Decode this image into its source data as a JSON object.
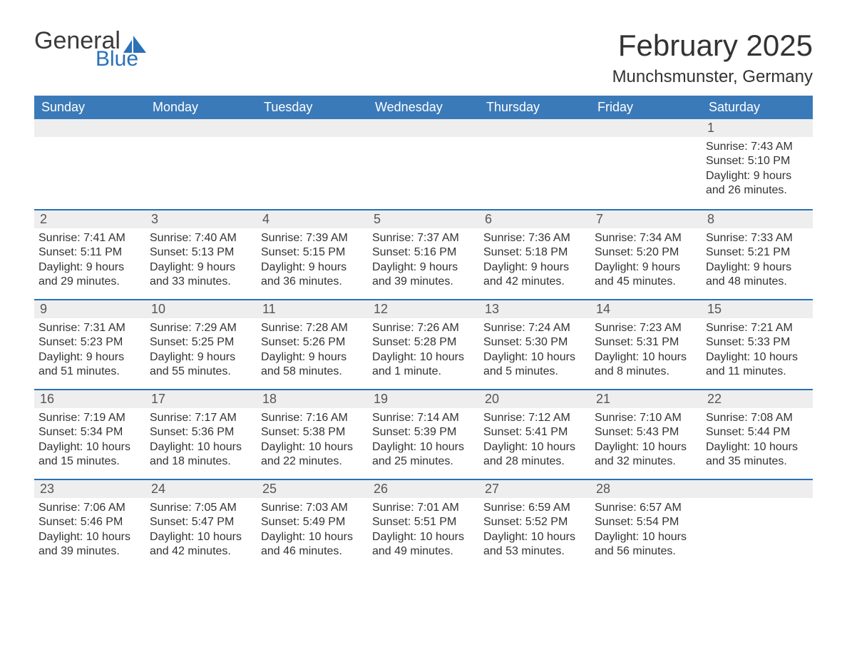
{
  "logo": {
    "text_general": "General",
    "text_blue": "Blue",
    "sail_color": "#2a71b8",
    "general_color": "#3a3a3a"
  },
  "header": {
    "month_title": "February 2025",
    "location": "Munchsmunster, Germany"
  },
  "colors": {
    "header_bg": "#3b7ab8",
    "header_text": "#ffffff",
    "daynum_bg": "#eeeeee",
    "row_divider": "#2a71b8",
    "body_text": "#333333",
    "page_bg": "#ffffff"
  },
  "day_headers": [
    "Sunday",
    "Monday",
    "Tuesday",
    "Wednesday",
    "Thursday",
    "Friday",
    "Saturday"
  ],
  "weeks": [
    [
      null,
      null,
      null,
      null,
      null,
      null,
      {
        "n": "1",
        "sunrise": "Sunrise: 7:43 AM",
        "sunset": "Sunset: 5:10 PM",
        "daylight": "Daylight: 9 hours and 26 minutes."
      }
    ],
    [
      {
        "n": "2",
        "sunrise": "Sunrise: 7:41 AM",
        "sunset": "Sunset: 5:11 PM",
        "daylight": "Daylight: 9 hours and 29 minutes."
      },
      {
        "n": "3",
        "sunrise": "Sunrise: 7:40 AM",
        "sunset": "Sunset: 5:13 PM",
        "daylight": "Daylight: 9 hours and 33 minutes."
      },
      {
        "n": "4",
        "sunrise": "Sunrise: 7:39 AM",
        "sunset": "Sunset: 5:15 PM",
        "daylight": "Daylight: 9 hours and 36 minutes."
      },
      {
        "n": "5",
        "sunrise": "Sunrise: 7:37 AM",
        "sunset": "Sunset: 5:16 PM",
        "daylight": "Daylight: 9 hours and 39 minutes."
      },
      {
        "n": "6",
        "sunrise": "Sunrise: 7:36 AM",
        "sunset": "Sunset: 5:18 PM",
        "daylight": "Daylight: 9 hours and 42 minutes."
      },
      {
        "n": "7",
        "sunrise": "Sunrise: 7:34 AM",
        "sunset": "Sunset: 5:20 PM",
        "daylight": "Daylight: 9 hours and 45 minutes."
      },
      {
        "n": "8",
        "sunrise": "Sunrise: 7:33 AM",
        "sunset": "Sunset: 5:21 PM",
        "daylight": "Daylight: 9 hours and 48 minutes."
      }
    ],
    [
      {
        "n": "9",
        "sunrise": "Sunrise: 7:31 AM",
        "sunset": "Sunset: 5:23 PM",
        "daylight": "Daylight: 9 hours and 51 minutes."
      },
      {
        "n": "10",
        "sunrise": "Sunrise: 7:29 AM",
        "sunset": "Sunset: 5:25 PM",
        "daylight": "Daylight: 9 hours and 55 minutes."
      },
      {
        "n": "11",
        "sunrise": "Sunrise: 7:28 AM",
        "sunset": "Sunset: 5:26 PM",
        "daylight": "Daylight: 9 hours and 58 minutes."
      },
      {
        "n": "12",
        "sunrise": "Sunrise: 7:26 AM",
        "sunset": "Sunset: 5:28 PM",
        "daylight": "Daylight: 10 hours and 1 minute."
      },
      {
        "n": "13",
        "sunrise": "Sunrise: 7:24 AM",
        "sunset": "Sunset: 5:30 PM",
        "daylight": "Daylight: 10 hours and 5 minutes."
      },
      {
        "n": "14",
        "sunrise": "Sunrise: 7:23 AM",
        "sunset": "Sunset: 5:31 PM",
        "daylight": "Daylight: 10 hours and 8 minutes."
      },
      {
        "n": "15",
        "sunrise": "Sunrise: 7:21 AM",
        "sunset": "Sunset: 5:33 PM",
        "daylight": "Daylight: 10 hours and 11 minutes."
      }
    ],
    [
      {
        "n": "16",
        "sunrise": "Sunrise: 7:19 AM",
        "sunset": "Sunset: 5:34 PM",
        "daylight": "Daylight: 10 hours and 15 minutes."
      },
      {
        "n": "17",
        "sunrise": "Sunrise: 7:17 AM",
        "sunset": "Sunset: 5:36 PM",
        "daylight": "Daylight: 10 hours and 18 minutes."
      },
      {
        "n": "18",
        "sunrise": "Sunrise: 7:16 AM",
        "sunset": "Sunset: 5:38 PM",
        "daylight": "Daylight: 10 hours and 22 minutes."
      },
      {
        "n": "19",
        "sunrise": "Sunrise: 7:14 AM",
        "sunset": "Sunset: 5:39 PM",
        "daylight": "Daylight: 10 hours and 25 minutes."
      },
      {
        "n": "20",
        "sunrise": "Sunrise: 7:12 AM",
        "sunset": "Sunset: 5:41 PM",
        "daylight": "Daylight: 10 hours and 28 minutes."
      },
      {
        "n": "21",
        "sunrise": "Sunrise: 7:10 AM",
        "sunset": "Sunset: 5:43 PM",
        "daylight": "Daylight: 10 hours and 32 minutes."
      },
      {
        "n": "22",
        "sunrise": "Sunrise: 7:08 AM",
        "sunset": "Sunset: 5:44 PM",
        "daylight": "Daylight: 10 hours and 35 minutes."
      }
    ],
    [
      {
        "n": "23",
        "sunrise": "Sunrise: 7:06 AM",
        "sunset": "Sunset: 5:46 PM",
        "daylight": "Daylight: 10 hours and 39 minutes."
      },
      {
        "n": "24",
        "sunrise": "Sunrise: 7:05 AM",
        "sunset": "Sunset: 5:47 PM",
        "daylight": "Daylight: 10 hours and 42 minutes."
      },
      {
        "n": "25",
        "sunrise": "Sunrise: 7:03 AM",
        "sunset": "Sunset: 5:49 PM",
        "daylight": "Daylight: 10 hours and 46 minutes."
      },
      {
        "n": "26",
        "sunrise": "Sunrise: 7:01 AM",
        "sunset": "Sunset: 5:51 PM",
        "daylight": "Daylight: 10 hours and 49 minutes."
      },
      {
        "n": "27",
        "sunrise": "Sunrise: 6:59 AM",
        "sunset": "Sunset: 5:52 PM",
        "daylight": "Daylight: 10 hours and 53 minutes."
      },
      {
        "n": "28",
        "sunrise": "Sunrise: 6:57 AM",
        "sunset": "Sunset: 5:54 PM",
        "daylight": "Daylight: 10 hours and 56 minutes."
      },
      null
    ]
  ]
}
